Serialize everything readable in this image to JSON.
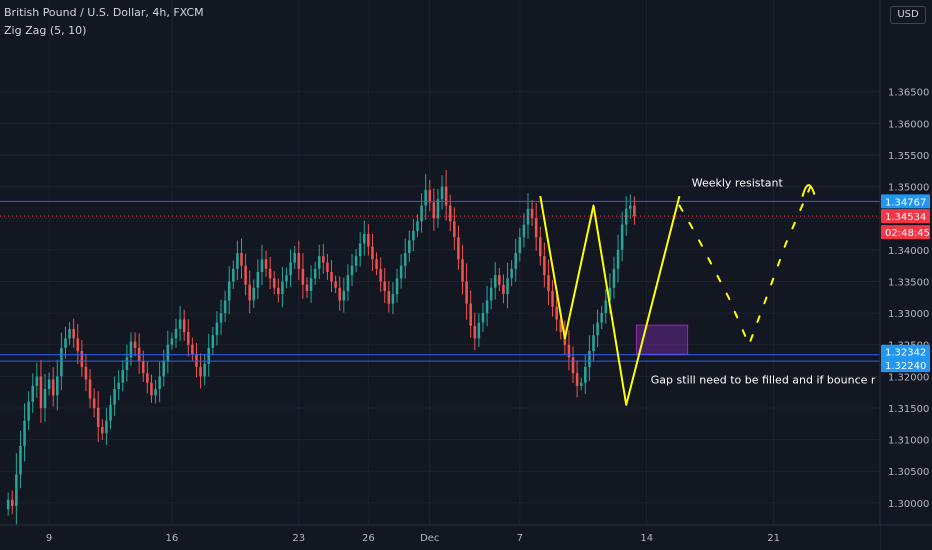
{
  "header": {
    "symbol": "British Pound / U.S. Dollar, 4h, FXCM",
    "indicator": "Zig Zag (5, 10)",
    "currency_button": "USD"
  },
  "colors": {
    "background": "#131722",
    "up": "#26a69a",
    "down": "#ef5350",
    "level_line": "#2962ff",
    "level_label": "#2196f3",
    "current_price_label": "#f23645",
    "drawing": "#ffff00",
    "gap_box": "#6a2c8f"
  },
  "chart_data": {
    "type": "candlestick",
    "title": "British Pound / U.S. Dollar, 4h, FXCM",
    "ylim": [
      1.2965,
      1.3795
    ],
    "y_ticks": [
      1.3,
      1.305,
      1.31,
      1.315,
      1.32,
      1.325,
      1.33,
      1.335,
      1.34,
      1.345,
      1.35,
      1.355,
      1.36,
      1.365
    ],
    "x_ticks": [
      {
        "label": "9",
        "index": 10
      },
      {
        "label": "16",
        "index": 40
      },
      {
        "label": "23",
        "index": 71
      },
      {
        "label": "26",
        "index": 88
      },
      {
        "label": "Dec",
        "index": 103
      },
      {
        "label": "7",
        "index": 125
      },
      {
        "label": "14",
        "index": 156
      },
      {
        "label": "21",
        "index": 187
      }
    ],
    "x_range": [
      -2,
      213
    ],
    "candle_closes": [
      1.3005,
      1.2995,
      1.3045,
      1.309,
      1.313,
      1.316,
      1.3185,
      1.32,
      1.315,
      1.318,
      1.3195,
      1.317,
      1.32,
      1.3245,
      1.326,
      1.3275,
      1.326,
      1.324,
      1.3215,
      1.3195,
      1.3165,
      1.315,
      1.312,
      1.311,
      1.313,
      1.3155,
      1.318,
      1.319,
      1.321,
      1.323,
      1.3255,
      1.3245,
      1.3225,
      1.3205,
      1.319,
      1.317,
      1.318,
      1.32,
      1.3225,
      1.325,
      1.326,
      1.3275,
      1.329,
      1.327,
      1.325,
      1.3235,
      1.3215,
      1.32,
      1.322,
      1.3245,
      1.3265,
      1.3285,
      1.33,
      1.332,
      1.335,
      1.337,
      1.3395,
      1.3375,
      1.3345,
      1.332,
      1.334,
      1.3365,
      1.3385,
      1.337,
      1.3355,
      1.334,
      1.333,
      1.335,
      1.336,
      1.338,
      1.3395,
      1.337,
      1.3345,
      1.3335,
      1.3355,
      1.337,
      1.339,
      1.338,
      1.3365,
      1.335,
      1.334,
      1.332,
      1.3335,
      1.336,
      1.3375,
      1.339,
      1.341,
      1.3425,
      1.3405,
      1.3385,
      1.337,
      1.335,
      1.3335,
      1.3315,
      1.333,
      1.3355,
      1.3375,
      1.3395,
      1.3415,
      1.343,
      1.3445,
      1.347,
      1.3495,
      1.3475,
      1.345,
      1.348,
      1.35,
      1.347,
      1.3445,
      1.342,
      1.3385,
      1.335,
      1.3315,
      1.328,
      1.326,
      1.3285,
      1.33,
      1.332,
      1.334,
      1.336,
      1.3345,
      1.333,
      1.3355,
      1.337,
      1.3395,
      1.342,
      1.344,
      1.3465,
      1.345,
      1.342,
      1.339,
      1.336,
      1.3335,
      1.331,
      1.329,
      1.327,
      1.325,
      1.323,
      1.3205,
      1.3185,
      1.319,
      1.3215,
      1.324,
      1.3265,
      1.3285,
      1.33,
      1.332,
      1.334,
      1.337,
      1.34,
      1.344,
      1.3465,
      1.347,
      1.3453
    ],
    "levels": [
      {
        "label": "1.34767",
        "value": 1.34767
      },
      {
        "label": "1.32342",
        "value": 1.32342
      },
      {
        "label": "1.32240",
        "value": 1.3224
      }
    ],
    "current_price": {
      "label": "1.34534",
      "value": 1.34534,
      "countdown": "02:48:45"
    },
    "gap_box": {
      "x0": 153.5,
      "x1": 166,
      "y0": 1.3235,
      "y1": 1.3281
    },
    "zigzag": [
      [
        130,
        1.3485
      ],
      [
        136,
        1.326
      ],
      [
        143,
        1.347
      ],
      [
        151,
        1.3155
      ],
      [
        164,
        1.3485
      ]
    ],
    "projection": [
      [
        164,
        1.347
      ],
      [
        168,
        1.3425
      ],
      [
        176,
        1.3325
      ],
      [
        181,
        1.325
      ],
      [
        185,
        1.332
      ],
      [
        190,
        1.341
      ],
      [
        196,
        1.35
      ]
    ],
    "annotations": [
      {
        "text": "Weekly resistant",
        "x": 167,
        "y": 1.35
      },
      {
        "text": "Gap still need to be filled and if bounce r",
        "x": 157,
        "y": 1.3189
      }
    ]
  }
}
